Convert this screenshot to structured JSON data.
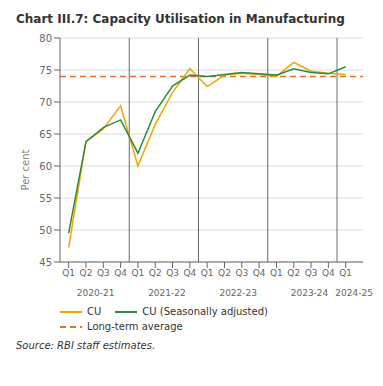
{
  "chart_data": {
    "type": "line",
    "title": "Chart III.7: Capacity Utilisation in Manufacturing",
    "y_label": "Per cent",
    "categories": [
      "Q1",
      "Q2",
      "Q3",
      "Q4",
      "Q1",
      "Q2",
      "Q3",
      "Q4",
      "Q1",
      "Q2",
      "Q3",
      "Q4",
      "Q1",
      "Q2",
      "Q3",
      "Q4",
      "Q1"
    ],
    "groups": [
      {
        "label": "2020-21",
        "size": 4
      },
      {
        "label": "2021-22",
        "size": 4
      },
      {
        "label": "2022-23",
        "size": 4
      },
      {
        "label": "2023-24",
        "size": 4
      },
      {
        "label": "2024-25",
        "size": 1
      }
    ],
    "series": [
      {
        "name": "CU",
        "color": "#f0a500",
        "values": [
          47.3,
          63.8,
          65.8,
          69.4,
          60.0,
          66.5,
          71.5,
          75.2,
          72.4,
          74.2,
          74.5,
          74.3,
          74.0,
          76.2,
          74.8,
          74.5,
          74.3
        ]
      },
      {
        "name": "CU (Seasonally adjusted)",
        "color": "#2e8b3e",
        "values": [
          49.5,
          63.8,
          66.0,
          67.2,
          62.0,
          68.5,
          72.5,
          74.2,
          74.0,
          74.3,
          74.6,
          74.4,
          74.2,
          75.2,
          74.6,
          74.4,
          75.5
        ]
      }
    ],
    "reference_lines": [
      {
        "name": "Long-term average",
        "value": 74.0,
        "color": "#e07030",
        "line_style": "dashed"
      }
    ],
    "ylim": [
      45,
      80
    ],
    "yticks": [
      45,
      50,
      55,
      60,
      65,
      70,
      75,
      80
    ],
    "grid": true,
    "legend": "lower left",
    "source": "Source: RBI staff estimates."
  }
}
